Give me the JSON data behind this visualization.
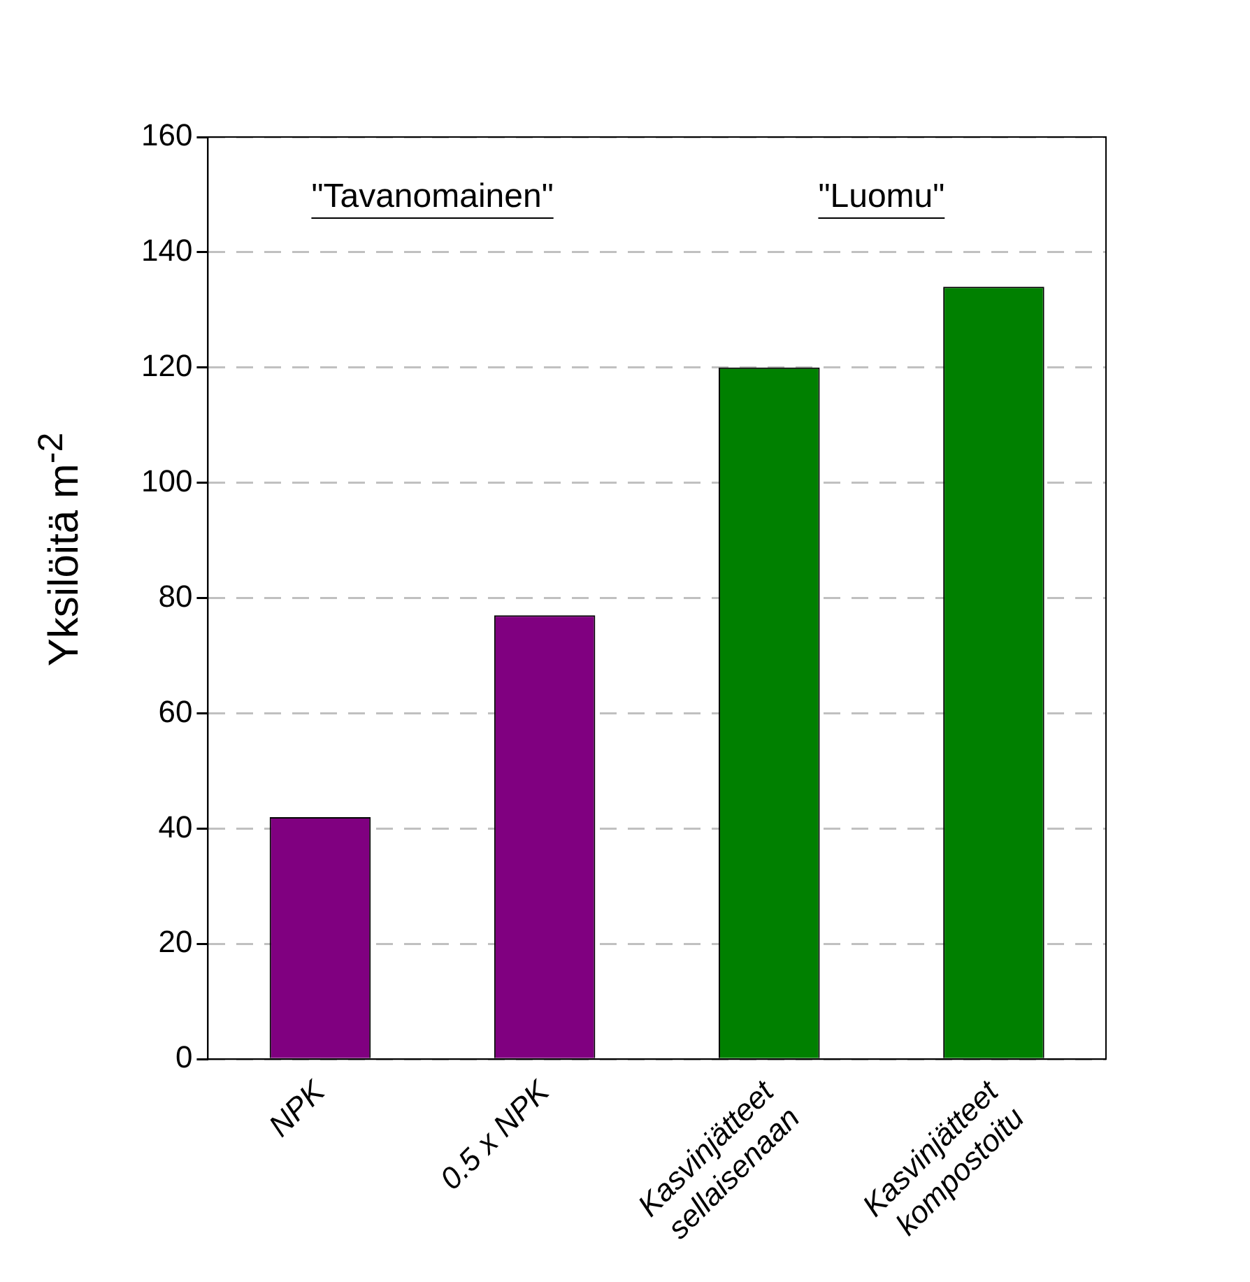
{
  "chart_data": {
    "type": "bar",
    "ylabel": "Yksilöitä m$^{-2}$",
    "categories": [
      "NPK",
      "0.5 x NPK",
      "Kasvinjätteet\nsellaisenaan",
      "Kasvinjätteet\nkompostoitu"
    ],
    "values": [
      42,
      77,
      120,
      134
    ],
    "colors": [
      "#800080",
      "#800080",
      "#008000",
      "#008000"
    ],
    "ylim": [
      0,
      160
    ],
    "yticks": [
      0,
      20,
      40,
      60,
      80,
      100,
      120,
      140,
      160
    ],
    "grid": "y",
    "legend": false,
    "annotations": [
      "\"Tavanomainen\"",
      "\"Luomu\""
    ]
  }
}
